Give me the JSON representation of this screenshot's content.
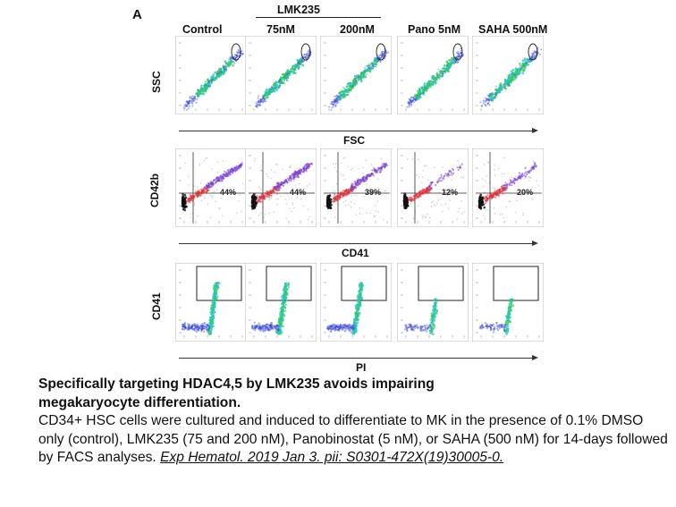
{
  "figure": {
    "panel_letter": "A",
    "group_header": "LMK235",
    "conditions": [
      "Control",
      "75nM",
      "200nM",
      "Pano 5nM",
      "SAHA 500nM"
    ],
    "rows": [
      {
        "ylabel": "SSC",
        "xlabel": "FSC",
        "type": "fsc_ssc",
        "percents": [
          "",
          "",
          "",
          "",
          ""
        ]
      },
      {
        "ylabel": "CD42b",
        "xlabel": "CD41",
        "type": "quadrant",
        "percents": [
          "44%",
          "44%",
          "39%",
          "12%",
          "20%"
        ]
      },
      {
        "ylabel": "CD41",
        "xlabel": "PI",
        "type": "ploidy",
        "percents": [
          "",
          "",
          "",
          "",
          ""
        ]
      }
    ],
    "colors": {
      "density_low": "#3b4bd8",
      "density_mid": "#27c4c4",
      "density_high": "#2fcf4a",
      "red_population": "#e0323c",
      "black_population": "#111111"
    }
  },
  "caption": {
    "title_line1": "Specifically targeting HDAC4,5 by LMK235 avoids impairing",
    "title_line2": "megakaryocyte differentiation.",
    "body": "CD34+ HSC cells were cultured and induced to differentiate to MK in the presence of 0.1% DMSO only (control), LMK235 (75 and 200 nM), Panobinostat (5 nM), or SAHA (500 nM) for 14-days followed by FACS analyses.",
    "reference": "Exp Hematol. 2019 Jan 3. pii: S0301-472X(19)30005-0."
  }
}
